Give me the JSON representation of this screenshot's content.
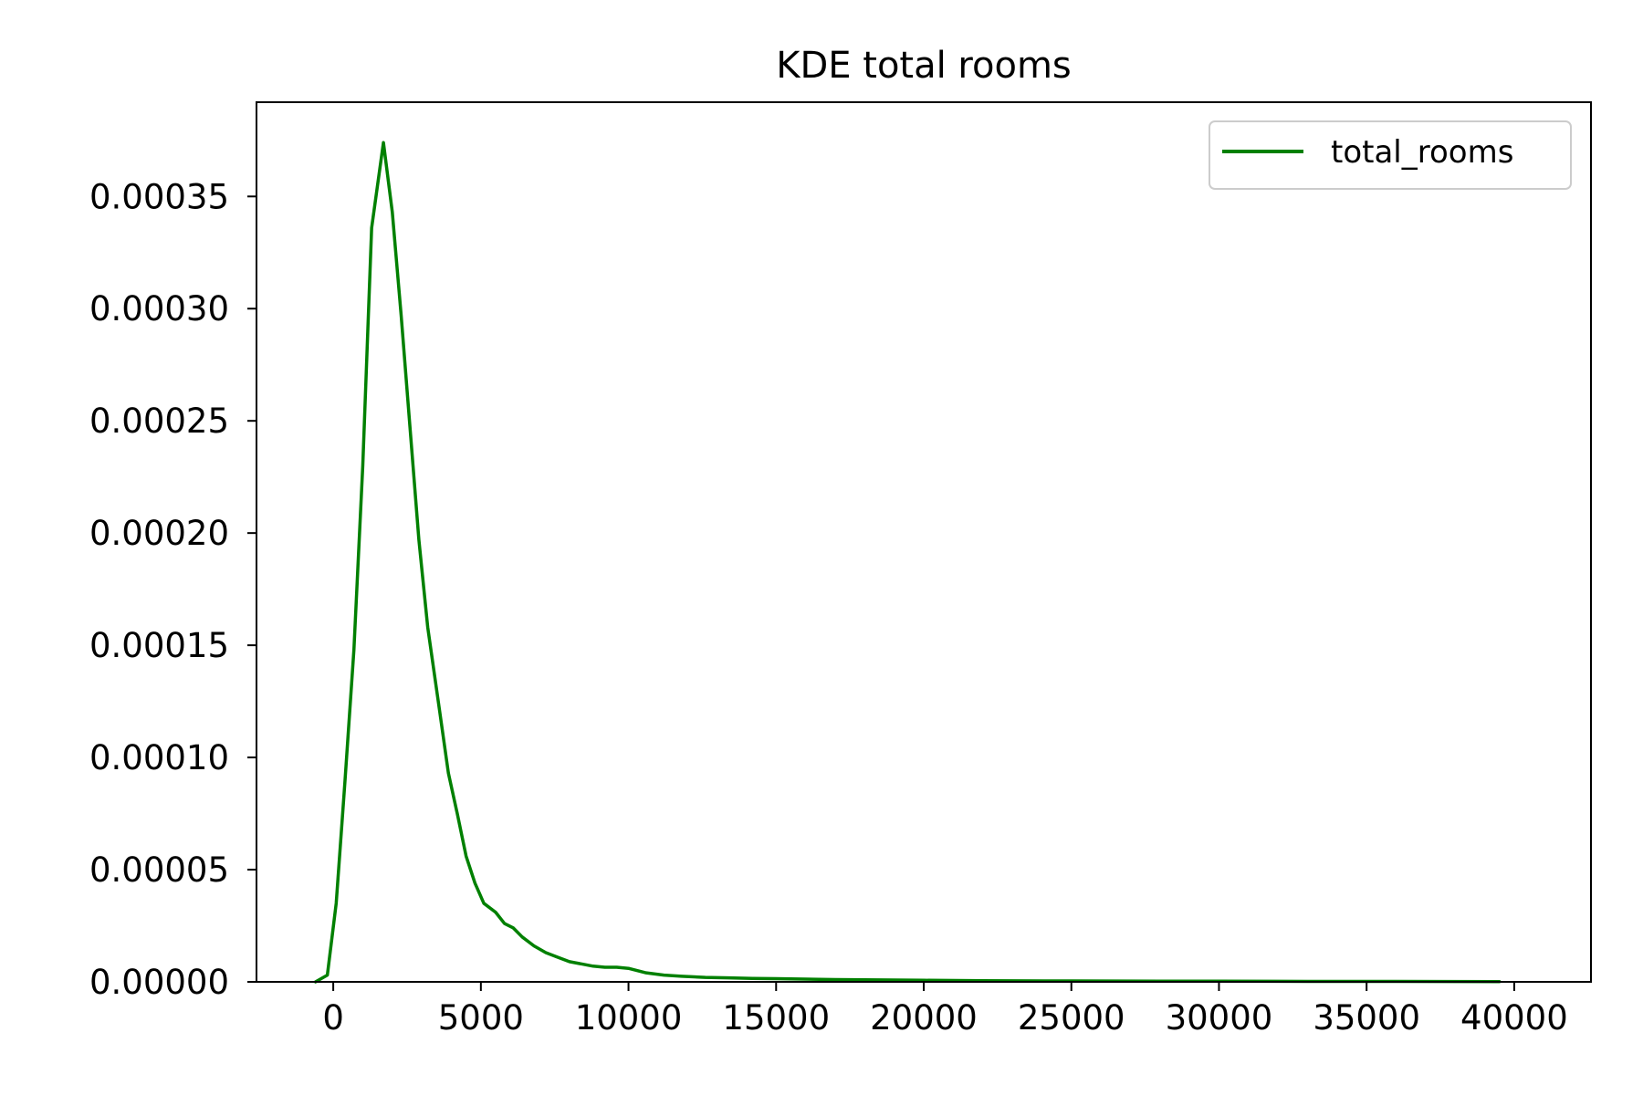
{
  "chart_data": {
    "type": "line",
    "title": "KDE total rooms",
    "xlabel": "",
    "ylabel": "",
    "xlim": [
      -2600,
      42600
    ],
    "ylim": [
      0,
      0.000392
    ],
    "x_ticks": [
      0,
      5000,
      10000,
      15000,
      20000,
      25000,
      30000,
      35000,
      40000
    ],
    "x_tick_labels": [
      "0",
      "5000",
      "10000",
      "15000",
      "20000",
      "25000",
      "30000",
      "35000",
      "40000"
    ],
    "y_ticks": [
      0,
      5e-05,
      0.0001,
      0.00015,
      0.0002,
      0.00025,
      0.0003,
      0.00035
    ],
    "y_tick_labels": [
      "0.00000",
      "0.00005",
      "0.00010",
      "0.00015",
      "0.00020",
      "0.00025",
      "0.00030",
      "0.00035"
    ],
    "grid": false,
    "legend_position": "top-right",
    "series": [
      {
        "name": "total_rooms",
        "color": "#008000",
        "x": [
          -600,
          -200,
          100,
          400,
          700,
          1000,
          1300,
          1700,
          2000,
          2300,
          2600,
          2900,
          3200,
          3600,
          3900,
          4200,
          4500,
          4800,
          5100,
          5500,
          5800,
          6100,
          6400,
          6800,
          7200,
          7600,
          8000,
          8400,
          8800,
          9200,
          9600,
          10000,
          10600,
          11200,
          11800,
          12600,
          13400,
          14200,
          15000,
          16000,
          17000,
          18000,
          19000,
          20000,
          22000,
          25000,
          28000,
          30000,
          33000,
          36000,
          39500
        ],
        "y": [
          0,
          3e-06,
          3.5e-05,
          9e-05,
          0.000148,
          0.00023,
          0.000336,
          0.000374,
          0.000343,
          0.000297,
          0.000247,
          0.000197,
          0.000158,
          0.000121,
          9.3e-05,
          7.5e-05,
          5.6e-05,
          4.4e-05,
          3.5e-05,
          3.1e-05,
          2.6e-05,
          2.4e-05,
          2e-05,
          1.6e-05,
          1.3e-05,
          1.1e-05,
          9e-06,
          8e-06,
          7e-06,
          6.5e-06,
          6.5e-06,
          6e-06,
          4e-06,
          3e-06,
          2.5e-06,
          2e-06,
          1.8e-06,
          1.5e-06,
          1.4e-06,
          1.2e-06,
          1e-06,
          9e-07,
          8e-07,
          7e-07,
          5e-07,
          4e-07,
          3e-07,
          3e-07,
          2e-07,
          2e-07,
          1e-07
        ]
      }
    ]
  }
}
